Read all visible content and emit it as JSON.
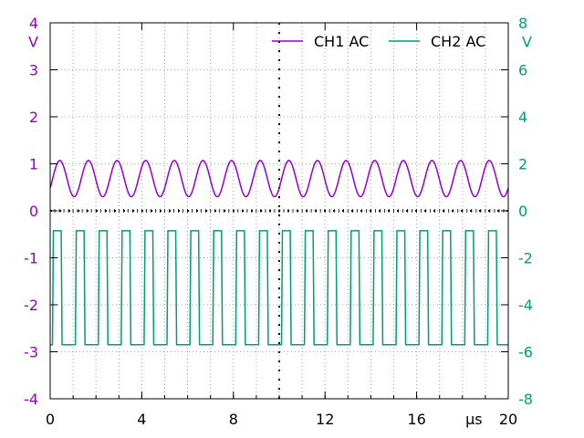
{
  "chart_data": {
    "type": "line",
    "title": "",
    "x_axis": {
      "unit_label": "µs",
      "range": [
        0,
        20
      ],
      "ticks": [
        "0",
        "4",
        "8",
        "12",
        "16",
        "20"
      ],
      "tick_values": [
        0,
        4,
        8,
        12,
        16,
        20
      ],
      "minor_step": 1
    },
    "y_left": {
      "unit_label": "V",
      "range": [
        -4,
        4
      ],
      "ticks": [
        "4",
        "3",
        "2",
        "1",
        "0",
        "-1",
        "-2",
        "-3",
        "-4"
      ],
      "tick_values": [
        4,
        3,
        2,
        1,
        0,
        -1,
        -2,
        -3,
        -4
      ],
      "color": "#9400d3"
    },
    "y_right": {
      "unit_label": "V",
      "range": [
        -8,
        8
      ],
      "ticks": [
        "8",
        "6",
        "4",
        "2",
        "0",
        "-2",
        "-4",
        "-6",
        "-8"
      ],
      "tick_values": [
        8,
        6,
        4,
        2,
        0,
        -2,
        -4,
        -6,
        -8
      ],
      "color": "#009e73"
    },
    "grid": true,
    "center_marker_x": 10,
    "legend_position": "top-right",
    "series": [
      {
        "name": "CH1 AC",
        "axis": "left",
        "color": "#9400d3",
        "waveform": "sine",
        "period_us": 1.25,
        "min_v": 0.3,
        "max_v": 1.07,
        "first_peak_us": 0.42
      },
      {
        "name": "CH2 AC",
        "axis": "right",
        "color": "#009e73",
        "waveform": "square",
        "period_us": 1.0,
        "high_v": -0.85,
        "low_v": -5.7,
        "first_rise_us": 0.1,
        "duty_high": 0.38
      }
    ]
  }
}
